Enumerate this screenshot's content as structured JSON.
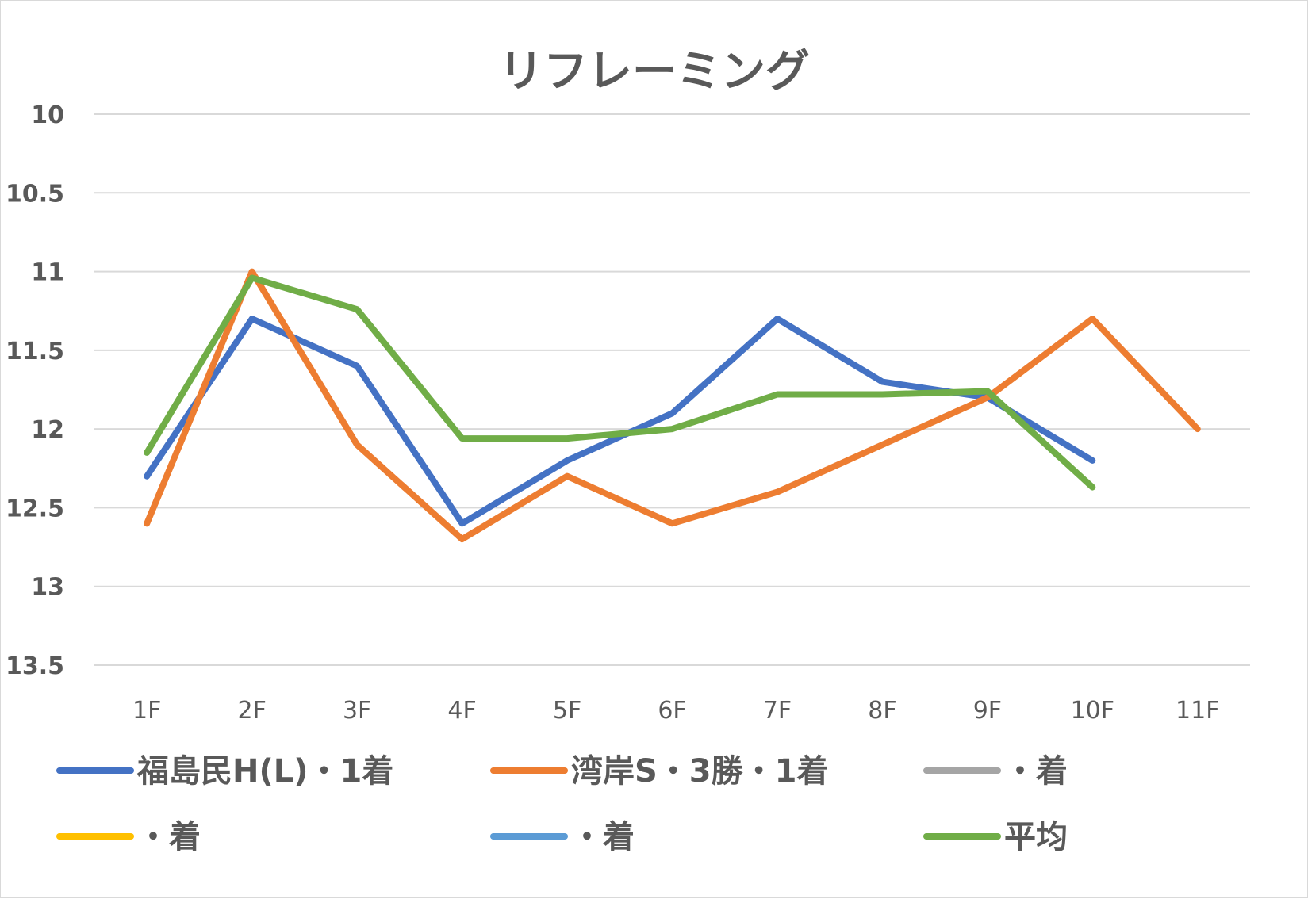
{
  "chart_data": {
    "type": "line",
    "title": "リフレーミング",
    "xlabel": "",
    "ylabel": "",
    "categories": [
      "1F",
      "2F",
      "3F",
      "4F",
      "5F",
      "6F",
      "7F",
      "8F",
      "9F",
      "10F",
      "11F"
    ],
    "y_axis": {
      "min": 10,
      "max": 13.5,
      "step": 0.5,
      "reversed": true,
      "tick_labels": [
        "10",
        "10.5",
        "11",
        "11.5",
        "12",
        "12.5",
        "13",
        "13.5"
      ]
    },
    "grid": true,
    "legend_position": "bottom",
    "series": [
      {
        "name": "福島民H(L)・1着",
        "color": "#4472c4",
        "values": [
          12.3,
          11.3,
          11.6,
          12.6,
          12.2,
          11.9,
          11.3,
          11.7,
          11.8,
          12.2,
          null
        ]
      },
      {
        "name": "湾岸S・3勝・1着",
        "color": "#ed7d31",
        "values": [
          12.6,
          11.0,
          12.1,
          12.7,
          12.3,
          12.6,
          12.4,
          12.1,
          11.8,
          11.3,
          12.0
        ]
      },
      {
        "name": "・着",
        "color": "#a5a5a5",
        "values": [
          null,
          null,
          null,
          null,
          null,
          null,
          null,
          null,
          null,
          null,
          null
        ]
      },
      {
        "name": "・着",
        "color": "#ffc000",
        "values": [
          null,
          null,
          null,
          null,
          null,
          null,
          null,
          null,
          null,
          null,
          null
        ]
      },
      {
        "name": "・着",
        "color": "#5b9bd5",
        "values": [
          null,
          null,
          null,
          null,
          null,
          null,
          null,
          null,
          null,
          null,
          null
        ]
      },
      {
        "name": "平均",
        "color": "#70ad47",
        "values": [
          12.15,
          11.04,
          11.24,
          12.06,
          12.06,
          12.0,
          11.78,
          11.78,
          11.76,
          12.37,
          null
        ]
      }
    ]
  }
}
